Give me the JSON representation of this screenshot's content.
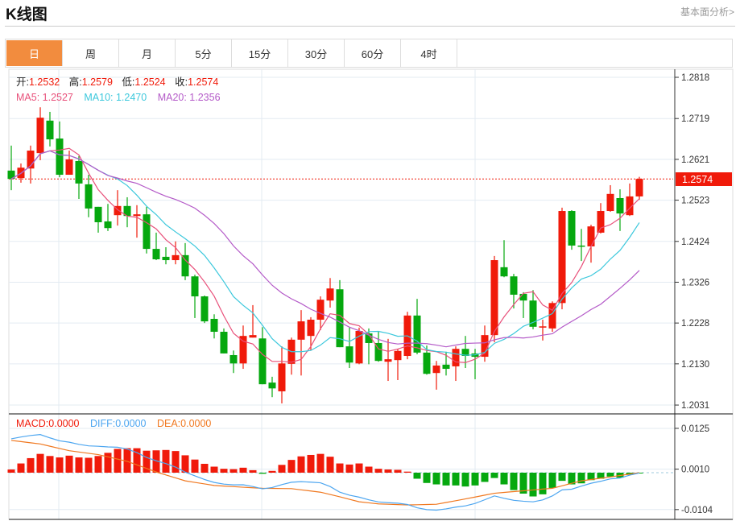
{
  "header": {
    "title": "K线图",
    "link": "基本面分析>"
  },
  "tabs": [
    {
      "label": "日",
      "active": true
    },
    {
      "label": "周"
    },
    {
      "label": "月"
    },
    {
      "label": "5分"
    },
    {
      "label": "15分"
    },
    {
      "label": "30分"
    },
    {
      "label": "60分"
    },
    {
      "label": "4时"
    }
  ],
  "legend": {
    "open_label": "开:",
    "open": "1.2532",
    "high_label": "高:",
    "high": "1.2579",
    "low_label": "低:",
    "low": "1.2524",
    "close_label": "收:",
    "close": "1.2574",
    "ma5": "MA5: 1.2527",
    "ma10": "MA10: 1.2470",
    "ma20": "MA20: 1.2356"
  },
  "macd_legend": {
    "macd": "MACD:0.0000",
    "diff": "DIFF:0.0000",
    "dea": "DEA:0.0000"
  },
  "colors": {
    "up": "#f01a0a",
    "down": "#06a80f",
    "accent": "#f28c3e",
    "ma5": "#e8507a",
    "ma10": "#3cc8dc",
    "ma20": "#b45ac8",
    "diff": "#4da6f0",
    "dea": "#f07820"
  },
  "chart_data": {
    "type": "candlestick",
    "price_ticks": [
      "1.2818",
      "1.2719",
      "1.2621",
      "1.2523",
      "1.2424",
      "1.2326",
      "1.2228",
      "1.2130",
      "1.2031"
    ],
    "ylim": [
      1.2031,
      1.2818
    ],
    "last_price": "1.2574",
    "ohlc": [
      [
        1.2594,
        1.2654,
        1.2547,
        1.2574
      ],
      [
        1.2576,
        1.2611,
        1.2565,
        1.2601
      ],
      [
        1.2599,
        1.2654,
        1.2563,
        1.2642
      ],
      [
        1.2636,
        1.2746,
        1.2619,
        1.2721
      ],
      [
        1.2714,
        1.2735,
        1.2652,
        1.2669
      ],
      [
        1.2671,
        1.2712,
        1.2578,
        1.2584
      ],
      [
        1.2584,
        1.2642,
        1.2584,
        1.2621
      ],
      [
        1.2617,
        1.2629,
        1.2526,
        1.2563
      ],
      [
        1.2561,
        1.2584,
        1.2482,
        1.2503
      ],
      [
        1.2507,
        1.2507,
        1.2445,
        1.247
      ],
      [
        1.2472,
        1.2514,
        1.2449,
        1.2456
      ],
      [
        1.2487,
        1.2547,
        1.2462,
        1.2509
      ],
      [
        1.2509,
        1.253,
        1.2458,
        1.2485
      ],
      [
        1.2485,
        1.2511,
        1.2433,
        1.2489
      ],
      [
        1.2489,
        1.2507,
        1.2395,
        1.2406
      ],
      [
        1.2406,
        1.2445,
        1.2379,
        1.2381
      ],
      [
        1.2387,
        1.241,
        1.2369,
        1.2379
      ],
      [
        1.2379,
        1.2424,
        1.2369,
        1.2391
      ],
      [
        1.2391,
        1.242,
        1.2331,
        1.234
      ],
      [
        1.234,
        1.2344,
        1.224,
        1.2292
      ],
      [
        1.2292,
        1.2294,
        1.2228,
        1.2232
      ],
      [
        1.2238,
        1.2249,
        1.2191,
        1.2207
      ],
      [
        1.2207,
        1.2215,
        1.2155,
        1.2155
      ],
      [
        1.2151,
        1.2162,
        1.2108,
        1.2131
      ],
      [
        1.2131,
        1.2222,
        1.2118,
        1.2197
      ],
      [
        1.2193,
        1.2271,
        1.2193,
        1.2199
      ],
      [
        1.2191,
        1.2218,
        1.2081,
        1.2081
      ],
      [
        1.2085,
        1.2099,
        1.205,
        1.2071
      ],
      [
        1.2064,
        1.2172,
        1.2035,
        1.2131
      ],
      [
        1.213,
        1.2193,
        1.2104,
        1.2188
      ],
      [
        1.2188,
        1.2259,
        1.2102,
        1.2232
      ],
      [
        1.2197,
        1.2242,
        1.2162,
        1.2236
      ],
      [
        1.2236,
        1.2292,
        1.2211,
        1.2284
      ],
      [
        1.2282,
        1.2336,
        1.2265,
        1.2311
      ],
      [
        1.2309,
        1.2331,
        1.217,
        1.217
      ],
      [
        1.2172,
        1.2217,
        1.212,
        1.2133
      ],
      [
        1.2131,
        1.2217,
        1.2129,
        1.2209
      ],
      [
        1.2203,
        1.2215,
        1.2129,
        1.218
      ],
      [
        1.218,
        1.2207,
        1.2135,
        1.2137
      ],
      [
        1.2135,
        1.219,
        1.2089,
        1.2141
      ],
      [
        1.2139,
        1.2166,
        1.2091,
        1.2161
      ],
      [
        1.2149,
        1.2255,
        1.2141,
        1.2246
      ],
      [
        1.2246,
        1.2286,
        1.2153,
        1.2157
      ],
      [
        1.2157,
        1.2174,
        1.2104,
        1.2106
      ],
      [
        1.2108,
        1.2137,
        1.2068,
        1.2126
      ],
      [
        1.2128,
        1.2159,
        1.2102,
        1.2118
      ],
      [
        1.2124,
        1.2172,
        1.2089,
        1.2166
      ],
      [
        1.2166,
        1.2197,
        1.212,
        1.2149
      ],
      [
        1.2155,
        1.2166,
        1.2093,
        1.2147
      ],
      [
        1.2147,
        1.2222,
        1.2135,
        1.2199
      ],
      [
        1.2199,
        1.2389,
        1.2182,
        1.2379
      ],
      [
        1.2362,
        1.2427,
        1.2338,
        1.234
      ],
      [
        1.234,
        1.2346,
        1.2263,
        1.2296
      ],
      [
        1.2298,
        1.2302,
        1.224,
        1.2282
      ],
      [
        1.2282,
        1.2307,
        1.2213,
        1.2219
      ],
      [
        1.2217,
        1.2236,
        1.2186,
        1.222
      ],
      [
        1.2215,
        1.228,
        1.2207,
        1.2276
      ],
      [
        1.2276,
        1.2505,
        1.2261,
        1.2497
      ],
      [
        1.2497,
        1.2499,
        1.2404,
        1.2414
      ],
      [
        1.2414,
        1.2454,
        1.2377,
        1.2412
      ],
      [
        1.2412,
        1.2464,
        1.2373,
        1.246
      ],
      [
        1.2445,
        1.2516,
        1.2443,
        1.2497
      ],
      [
        1.2497,
        1.2559,
        1.2495,
        1.2538
      ],
      [
        1.2528,
        1.2549,
        1.2449,
        1.2491
      ],
      [
        1.2487,
        1.2563,
        1.2485,
        1.2532
      ],
      [
        1.2532,
        1.2579,
        1.2524,
        1.2574
      ]
    ],
    "macd_ticks": [
      "0.0125",
      "0.0010",
      "-0.0104"
    ],
    "macd_hist": [
      0.0009,
      0.0026,
      0.0041,
      0.0053,
      0.0047,
      0.0043,
      0.0048,
      0.0043,
      0.0042,
      0.0047,
      0.0056,
      0.0067,
      0.0069,
      0.0069,
      0.0062,
      0.0063,
      0.0064,
      0.0061,
      0.0049,
      0.0037,
      0.0025,
      0.0017,
      0.0011,
      0.001,
      0.0014,
      0.0007,
      -0.0003,
      0.0005,
      0.0022,
      0.0036,
      0.0046,
      0.005,
      0.0053,
      0.0045,
      0.0026,
      0.0023,
      0.0026,
      0.0017,
      0.0011,
      0.0009,
      0.0008,
      0.0003,
      -0.0017,
      -0.0029,
      -0.0033,
      -0.0036,
      -0.0036,
      -0.0039,
      -0.0036,
      -0.0026,
      -0.0015,
      -0.0033,
      -0.0049,
      -0.0059,
      -0.0067,
      -0.0061,
      -0.0043,
      -0.0023,
      -0.0033,
      -0.003,
      -0.0021,
      -0.0017,
      -0.0011,
      -0.0014,
      -0.0006,
      -0.0002
    ],
    "dea_anchors": [
      [
        0,
        0.0091
      ],
      [
        3,
        0.0081
      ],
      [
        6,
        0.0062
      ],
      [
        9,
        0.0051
      ],
      [
        12,
        0.0032
      ],
      [
        15,
        0.0002
      ],
      [
        18,
        -0.0023
      ],
      [
        21,
        -0.0036
      ],
      [
        24,
        -0.0041
      ],
      [
        26,
        -0.0044
      ],
      [
        29,
        -0.0045
      ],
      [
        32,
        -0.0055
      ],
      [
        34,
        -0.0068
      ],
      [
        36,
        -0.0082
      ],
      [
        38,
        -0.0088
      ],
      [
        41,
        -0.0091
      ],
      [
        44,
        -0.0089
      ],
      [
        47,
        -0.0074
      ],
      [
        50,
        -0.0058
      ],
      [
        53,
        -0.0051
      ],
      [
        56,
        -0.0044
      ],
      [
        59,
        -0.0023
      ],
      [
        62,
        -0.0012
      ],
      [
        65,
        0
      ]
    ]
  }
}
